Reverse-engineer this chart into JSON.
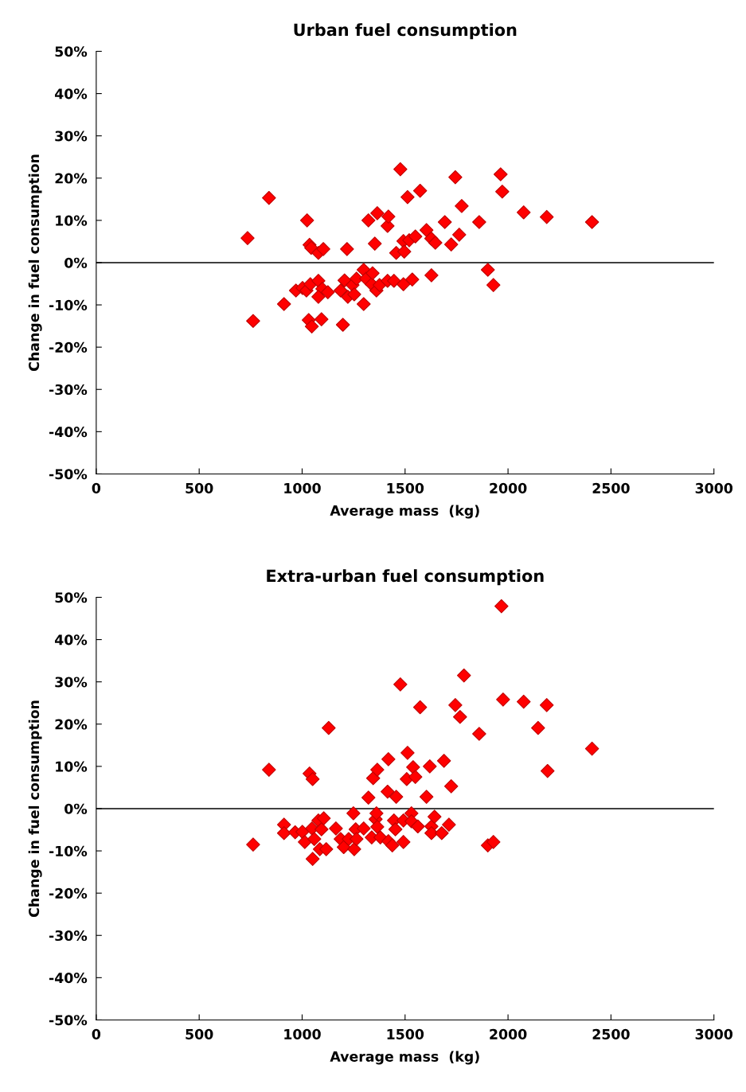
{
  "chart_data": [
    {
      "type": "scatter",
      "title": "Urban fuel consumption",
      "xlabel": "Average mass  (kg)",
      "ylabel": "Change in fuel consumption",
      "xlim": [
        0,
        3000
      ],
      "xticks": [
        0,
        500,
        1000,
        1500,
        2000,
        2500,
        3000
      ],
      "ylim": [
        -50,
        50
      ],
      "yticks": [
        {
          "value": -50,
          "label": "-50%"
        },
        {
          "value": -40,
          "label": "-40%"
        },
        {
          "value": -30,
          "label": "-30%"
        },
        {
          "value": -20,
          "label": "-20%"
        },
        {
          "value": -10,
          "label": "-10%"
        },
        {
          "value": 0,
          "label": "0%"
        },
        {
          "value": 10,
          "label": "10%"
        },
        {
          "value": 20,
          "label": "20%"
        },
        {
          "value": 30,
          "label": "30%"
        },
        {
          "value": 40,
          "label": "40%"
        },
        {
          "value": 50,
          "label": "50%"
        }
      ],
      "grid": false,
      "marker": "diamond",
      "ref_lines": [
        {
          "axis": "y",
          "value": 0,
          "color": "#000000"
        }
      ],
      "series": [
        {
          "color": "#ff0000",
          "x": [
            735,
            762,
            839,
            912,
            970,
            1002,
            1021,
            1024,
            1040,
            1032,
            1047,
            1036,
            1044,
            1079,
            1098,
            1125,
            1079,
            1094,
            1079,
            1103,
            1198,
            1187,
            1206,
            1218,
            1222,
            1245,
            1253,
            1264,
            1299,
            1299,
            1311,
            1322,
            1338,
            1342,
            1353,
            1361,
            1365,
            1376,
            1415,
            1419,
            1415,
            1446,
            1457,
            1477,
            1492,
            1492,
            1496,
            1512,
            1520,
            1535,
            1550,
            1573,
            1604,
            1627,
            1628,
            1647,
            1693,
            1724,
            1744,
            1763,
            1775,
            1860,
            1902,
            1929,
            1964,
            1972,
            2076,
            2188,
            2408
          ],
          "values": [
            5.8,
            -13.8,
            15.3,
            -9.8,
            -6.6,
            -6,
            -6.6,
            10,
            -5.1,
            -13.6,
            -15.1,
            4.2,
            3.5,
            -4.3,
            -6.2,
            -7,
            -8.1,
            -13.4,
            2.3,
            3.2,
            -14.7,
            -6.6,
            -4.2,
            3.2,
            -8.1,
            -5.3,
            -7.5,
            -3.8,
            -1.7,
            -9.8,
            -3.8,
            10,
            -5.1,
            -2.5,
            4.5,
            -6.6,
            11.7,
            -5.3,
            8.7,
            10.9,
            -4.3,
            -4.3,
            2.3,
            22.1,
            5.1,
            -5.1,
            2.6,
            15.5,
            5.3,
            -4,
            6.2,
            17,
            7.7,
            5.7,
            -3,
            4.7,
            9.6,
            4.3,
            20.2,
            6.6,
            13.4,
            9.6,
            -1.7,
            -5.3,
            20.9,
            16.8,
            11.9,
            10.8,
            9.6
          ]
        }
      ]
    },
    {
      "type": "scatter",
      "title": "Extra-urban fuel consumption",
      "xlabel": "Average mass  (kg)",
      "ylabel": "Change in fuel consumption",
      "xlim": [
        0,
        3000
      ],
      "xticks": [
        0,
        500,
        1000,
        1500,
        2000,
        2500,
        3000
      ],
      "ylim": [
        -50,
        50
      ],
      "yticks": [
        {
          "value": -50,
          "label": "-50%"
        },
        {
          "value": -40,
          "label": "-40%"
        },
        {
          "value": -30,
          "label": "-30%"
        },
        {
          "value": -20,
          "label": "-20%"
        },
        {
          "value": -10,
          "label": "-10%"
        },
        {
          "value": 0,
          "label": "0%"
        },
        {
          "value": 10,
          "label": "10%"
        },
        {
          "value": 20,
          "label": "20%"
        },
        {
          "value": 30,
          "label": "30%"
        },
        {
          "value": 40,
          "label": "40%"
        },
        {
          "value": 50,
          "label": "50%"
        }
      ],
      "grid": false,
      "marker": "diamond",
      "ref_lines": [
        {
          "axis": "y",
          "value": 0,
          "color": "#000000"
        }
      ],
      "series": [
        {
          "color": "#ff0000",
          "x": [
            762,
            839,
            912,
            912,
            966,
            1001,
            1013,
            1036,
            1048,
            1051,
            1051,
            1059,
            1079,
            1086,
            1094,
            1105,
            1117,
            1129,
            1164,
            1187,
            1202,
            1226,
            1249,
            1253,
            1260,
            1264,
            1299,
            1322,
            1338,
            1345,
            1357,
            1361,
            1365,
            1365,
            1380,
            1415,
            1419,
            1419,
            1438,
            1446,
            1453,
            1457,
            1477,
            1492,
            1492,
            1508,
            1512,
            1531,
            1531,
            1539,
            1550,
            1562,
            1573,
            1604,
            1620,
            1628,
            1628,
            1643,
            1678,
            1689,
            1713,
            1724,
            1744,
            1767,
            1786,
            1860,
            1902,
            1929,
            1968,
            1976,
            2076,
            2146,
            2188,
            2192,
            2408
          ],
          "values": [
            -8.5,
            9.2,
            -3.8,
            -5.8,
            -5.6,
            -5.5,
            -7.9,
            8.3,
            -4.7,
            7,
            -11.9,
            -7.2,
            -2.8,
            -9.6,
            -4.9,
            -2.3,
            -9.6,
            19.1,
            -4.7,
            -7.2,
            -9.1,
            -7.2,
            -1.1,
            -9.6,
            -4.9,
            -7.2,
            -4.7,
            2.6,
            -6.8,
            7.2,
            -2.5,
            -1.1,
            9.2,
            -4.3,
            -6.8,
            4,
            11.7,
            -7.7,
            -8.7,
            -2.8,
            -4.9,
            2.8,
            29.4,
            -2.8,
            -7.9,
            7,
            13.2,
            -1.1,
            -3,
            9.8,
            7.5,
            -4.2,
            24,
            2.8,
            10,
            -4.2,
            -5.8,
            -1.9,
            -5.8,
            11.3,
            -3.8,
            5.3,
            24.5,
            21.7,
            31.5,
            17.7,
            -8.7,
            -7.9,
            47.9,
            25.8,
            25.3,
            19.1,
            24.5,
            8.9,
            14.2
          ]
        }
      ]
    }
  ]
}
